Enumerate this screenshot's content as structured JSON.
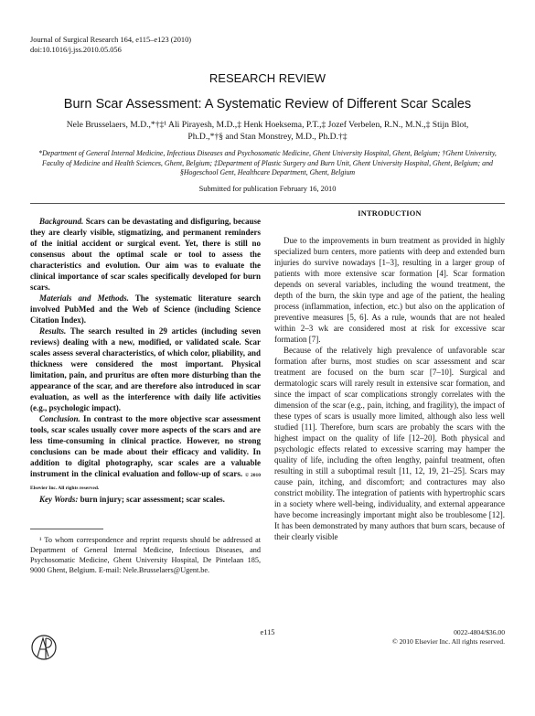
{
  "header": {
    "journal": "Journal of Surgical Research 164, e115–e123 (2010)",
    "doi": "doi:10.1016/j.jss.2010.05.056"
  },
  "section_label": "RESEARCH REVIEW",
  "title": "Burn Scar Assessment: A Systematic Review of Different Scar Scales",
  "authors": "Nele Brusselaers, M.D.,*†‡¹ Ali Pirayesh, M.D.,‡ Henk Hoeksema, P.T.,‡ Jozef Verbelen, R.N., M.N.,‡ Stijn Blot, Ph.D.,*†§ and Stan Monstrey, M.D., Ph.D.†‡",
  "affiliations": "*Department of General Internal Medicine, Infectious Diseases and Psychosomatic Medicine, Ghent University Hospital, Ghent, Belgium; †Ghent University, Faculty of Medicine and Health Sciences, Ghent, Belgium; ‡Department of Plastic Surgery and Burn Unit, Ghent University Hospital, Ghent, Belgium; and §Hogeschool Gent, Healthcare Department, Ghent, Belgium",
  "submitted": "Submitted for publication February 16, 2010",
  "abstract": {
    "background": {
      "label": "Background.",
      "text": "Scars can be devastating and disfiguring, because they are clearly visible, stigmatizing, and permanent reminders of the initial accident or surgical event. Yet, there is still no consensus about the optimal scale or tool to assess the characteristics and evolution. Our aim was to evaluate the clinical importance of scar scales specifically developed for burn scars."
    },
    "methods": {
      "label": "Materials and Methods.",
      "text": "The systematic literature search involved PubMed and the Web of Science (including Science Citation Index)."
    },
    "results": {
      "label": "Results.",
      "text": "The search resulted in 29 articles (including seven reviews) dealing with a new, modified, or validated scale. Scar scales assess several characteristics, of which color, pliability, and thickness were considered the most important. Physical limitation, pain, and pruritus are often more disturbing than the appearance of the scar, and are therefore also introduced in scar evaluation, as well as the interference with daily life activities (e.g., psychologic impact)."
    },
    "conclusion": {
      "label": "Conclusion.",
      "text": "In contrast to the more objective scar assessment tools, scar scales usually cover more aspects of the scars and are less time-consuming in clinical practice. However, no strong conclusions can be made about their efficacy and validity. In addition to digital photography, scar scales are a valuable instrument in the clinical evaluation and follow-up of scars.",
      "copyright": "© 2010 Elsevier Inc. All rights reserved."
    },
    "keywords": {
      "label": "Key Words:",
      "text": "burn injury; scar assessment; scar scales."
    }
  },
  "footnote": "¹ To whom correspondence and reprint requests should be addressed at Department of General Internal Medicine, Infectious Diseases, and Psychosomatic Medicine, Ghent University Hospital, De Pintelaan 185, 9000 Ghent, Belgium. E-mail: Nele.Brusselaers@Ugent.be.",
  "introduction": {
    "heading": "INTRODUCTION",
    "paragraphs": [
      "Due to the improvements in burn treatment as provided in highly specialized burn centers, more patients with deep and extended burn injuries do survive nowadays [1–3], resulting in a larger group of patients with more extensive scar formation [4]. Scar formation depends on several variables, including the wound treatment, the depth of the burn, the skin type and age of the patient, the healing process (inflammation, infection, etc.) but also on the application of preventive measures [5, 6]. As a rule, wounds that are not healed within 2–3 wk are considered most at risk for excessive scar formation [7].",
      "Because of the relatively high prevalence of unfavorable scar formation after burns, most studies on scar assessment and scar treatment are focused on the burn scar [7–10]. Surgical and dermatologic scars will rarely result in extensive scar formation, and since the impact of scar complications strongly correlates with the dimension of the scar (e.g., pain, itching, and fragility), the impact of these types of scars is usually more limited, although also less well studied [11]. Therefore, burn scars are probably the scars with the highest impact on the quality of life [12–20]. Both physical and psychologic effects related to excessive scarring may hamper the quality of life, including the often lengthy, painful treatment, often resulting in still a suboptimal result [11, 12, 19, 21–25]. Scars may cause pain, itching, and discomfort; and contractures may also constrict mobility. The integration of patients with hypertrophic scars in a society where well-being, individuality, and external appearance have become increasingly important might also be troublesome [12]. It has been demonstrated by many authors that burn scars, because of their clearly visible"
    ]
  },
  "footer": {
    "page": "e115",
    "issn": "0022-4804/$36.00",
    "copyright": "© 2010 Elsevier Inc. All rights reserved."
  }
}
